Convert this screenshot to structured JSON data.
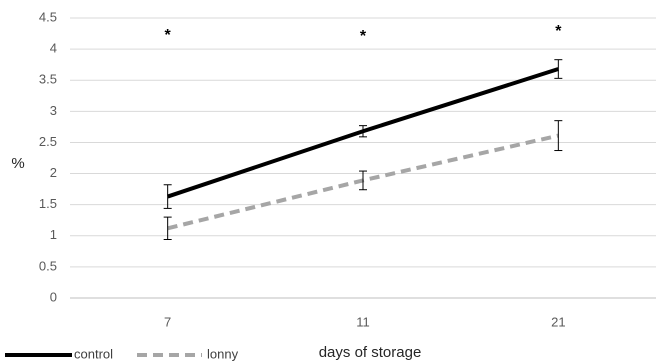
{
  "chart_data": {
    "type": "line",
    "categories": [
      "7",
      "11",
      "21"
    ],
    "series": [
      {
        "name": "control",
        "values": [
          1.63,
          2.68,
          3.68
        ],
        "error": [
          0.19,
          0.09,
          0.15
        ],
        "color": "#000000",
        "style": "solid"
      },
      {
        "name": "lonny",
        "values": [
          1.12,
          1.89,
          2.61
        ],
        "error": [
          0.18,
          0.15,
          0.24
        ],
        "color": "#a6a6a6",
        "style": "dashed"
      }
    ],
    "annotations": [
      "*",
      "*",
      "*"
    ],
    "title": "",
    "xlabel": "days of storage",
    "ylabel": "%",
    "ylim": [
      0,
      4.5
    ],
    "yticks": [
      "0",
      "0.5",
      "1",
      "1.5",
      "2",
      "2.5",
      "3",
      "3.5",
      "4",
      "4.5"
    ],
    "grid": true,
    "legend_position": "bottom-left"
  }
}
